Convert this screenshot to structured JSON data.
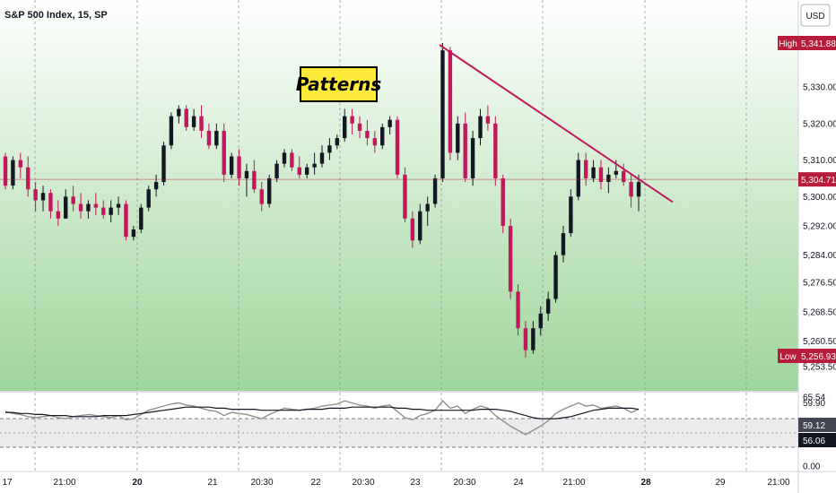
{
  "header": {
    "title": "S&P 500 Index, 15, SP",
    "currency_label": "USD"
  },
  "colors": {
    "up": "#131722",
    "down": "#c2185b",
    "trend": "#c2185b",
    "badge_red": "#b71c3c",
    "badge_dark": "#434651",
    "bg_top": "#ffffff",
    "bg_bottom": "#9ed69a",
    "rsi_line": "#909090",
    "rsi_ma": "#131722",
    "annotation_bg": "#ffeb3b"
  },
  "annotation": {
    "label": "Patterns"
  },
  "chart_data": [
    {
      "type": "candlestick",
      "title": "S&P 500 Index, 15, SP",
      "ylim": [
        5250,
        5345
      ],
      "y_ticks": [
        "5,330.00",
        "5,320.00",
        "5,310.00",
        "5,300.00",
        "5,292.00",
        "5,284.00",
        "5,276.50",
        "5,268.50",
        "5,260.50",
        "5,253.50"
      ],
      "x_tick_labels": [
        "17",
        "21:00",
        "20",
        "21",
        "20:30",
        "22",
        "20:30",
        "23",
        "20:30",
        "24",
        "21:00",
        "28",
        "29",
        "21:00"
      ],
      "high": {
        "label": "High",
        "value": "5,341.88"
      },
      "low": {
        "label": "Low",
        "value": "5,256.93"
      },
      "last_price": "5,304.71",
      "trendline": {
        "from": 5341.5,
        "to": 5298.5
      },
      "ohlc": [
        [
          5311,
          5312,
          5302,
          5303
        ],
        [
          5303,
          5311,
          5302,
          5310
        ],
        [
          5310,
          5312,
          5305,
          5308
        ],
        [
          5308,
          5311,
          5300,
          5302
        ],
        [
          5302,
          5304,
          5296,
          5299
        ],
        [
          5299,
          5303,
          5296,
          5301
        ],
        [
          5301,
          5302,
          5294,
          5296
        ],
        [
          5296,
          5299,
          5292,
          5294
        ],
        [
          5294,
          5302,
          5294,
          5300
        ],
        [
          5300,
          5303,
          5296,
          5298
        ],
        [
          5298,
          5301,
          5294,
          5296
        ],
        [
          5296,
          5299,
          5294,
          5298
        ],
        [
          5298,
          5301,
          5295,
          5297
        ],
        [
          5297,
          5299,
          5294,
          5295
        ],
        [
          5295,
          5299,
          5293,
          5297
        ],
        [
          5297,
          5300,
          5295,
          5298
        ],
        [
          5298,
          5299,
          5288,
          5289
        ],
        [
          5289,
          5292,
          5288,
          5291
        ],
        [
          5291,
          5298,
          5290,
          5297
        ],
        [
          5297,
          5303,
          5296,
          5302
        ],
        [
          5302,
          5306,
          5300,
          5304
        ],
        [
          5304,
          5315,
          5303,
          5314
        ],
        [
          5314,
          5323,
          5313,
          5322
        ],
        [
          5322,
          5325,
          5320,
          5324
        ],
        [
          5324,
          5325,
          5318,
          5319
        ],
        [
          5319,
          5324,
          5318,
          5322
        ],
        [
          5322,
          5325,
          5316,
          5318
        ],
        [
          5318,
          5320,
          5313,
          5314
        ],
        [
          5314,
          5320,
          5313,
          5318
        ],
        [
          5318,
          5320,
          5304,
          5306
        ],
        [
          5306,
          5312,
          5305,
          5311
        ],
        [
          5311,
          5313,
          5303,
          5305
        ],
        [
          5305,
          5309,
          5300,
          5307
        ],
        [
          5307,
          5310,
          5301,
          5302
        ],
        [
          5302,
          5304,
          5296,
          5298
        ],
        [
          5298,
          5306,
          5297,
          5305
        ],
        [
          5305,
          5310,
          5304,
          5309
        ],
        [
          5309,
          5313,
          5308,
          5312
        ],
        [
          5312,
          5313,
          5307,
          5308
        ],
        [
          5308,
          5311,
          5305,
          5306
        ],
        [
          5306,
          5309,
          5305,
          5308
        ],
        [
          5308,
          5312,
          5306,
          5309
        ],
        [
          5309,
          5314,
          5308,
          5312
        ],
        [
          5312,
          5316,
          5310,
          5314
        ],
        [
          5314,
          5317,
          5313,
          5316
        ],
        [
          5316,
          5324,
          5315,
          5322
        ],
        [
          5322,
          5324,
          5317,
          5320
        ],
        [
          5320,
          5322,
          5316,
          5318
        ],
        [
          5318,
          5321,
          5314,
          5316
        ],
        [
          5316,
          5318,
          5312,
          5314
        ],
        [
          5314,
          5320,
          5313,
          5319
        ],
        [
          5319,
          5322,
          5317,
          5321
        ],
        [
          5321,
          5322,
          5305,
          5306
        ],
        [
          5306,
          5308,
          5293,
          5294
        ],
        [
          5294,
          5296,
          5286,
          5288
        ],
        [
          5288,
          5298,
          5287,
          5296
        ],
        [
          5296,
          5300,
          5292,
          5298
        ],
        [
          5298,
          5306,
          5297,
          5305
        ],
        [
          5305,
          5342,
          5304,
          5340
        ],
        [
          5340,
          5341,
          5310,
          5312
        ],
        [
          5312,
          5322,
          5310,
          5320
        ],
        [
          5320,
          5323,
          5304,
          5305
        ],
        [
          5305,
          5318,
          5303,
          5316
        ],
        [
          5316,
          5324,
          5314,
          5322
        ],
        [
          5322,
          5325,
          5318,
          5320
        ],
        [
          5320,
          5322,
          5303,
          5305
        ],
        [
          5305,
          5306,
          5290,
          5292
        ],
        [
          5292,
          5294,
          5272,
          5274
        ],
        [
          5274,
          5276,
          5262,
          5264
        ],
        [
          5264,
          5266,
          5256,
          5258
        ],
        [
          5258,
          5266,
          5257,
          5264
        ],
        [
          5264,
          5270,
          5262,
          5268
        ],
        [
          5268,
          5274,
          5266,
          5272
        ],
        [
          5272,
          5285,
          5271,
          5284
        ],
        [
          5284,
          5292,
          5282,
          5290
        ],
        [
          5290,
          5302,
          5289,
          5300
        ],
        [
          5300,
          5312,
          5299,
          5310
        ],
        [
          5310,
          5312,
          5303,
          5305
        ],
        [
          5305,
          5310,
          5304,
          5308
        ],
        [
          5308,
          5310,
          5302,
          5304
        ],
        [
          5304,
          5308,
          5301,
          5306
        ],
        [
          5306,
          5310,
          5305,
          5307
        ],
        [
          5307,
          5309,
          5303,
          5304
        ],
        [
          5304,
          5306,
          5297,
          5300
        ],
        [
          5300,
          5306,
          5296,
          5304
        ]
      ]
    },
    {
      "type": "line",
      "title": "RSI",
      "ylim": [
        0,
        70
      ],
      "y_ticks": [
        "65.54",
        "59.90",
        "0.00"
      ],
      "rsi_value": "59.12",
      "ma_value": "56.06",
      "rsi": [
        52,
        50,
        49,
        47,
        46,
        47,
        48,
        46,
        45,
        47,
        48,
        49,
        48,
        47,
        46,
        48,
        44,
        45,
        49,
        53,
        55,
        57,
        59,
        60,
        58,
        57,
        55,
        53,
        52,
        48,
        51,
        50,
        49,
        47,
        45,
        49,
        52,
        55,
        54,
        53,
        54,
        55,
        57,
        58,
        59,
        62,
        60,
        58,
        57,
        55,
        57,
        58,
        52,
        46,
        44,
        48,
        50,
        53,
        62,
        55,
        57,
        50,
        54,
        57,
        55,
        48,
        43,
        38,
        34,
        30,
        34,
        38,
        43,
        50,
        54,
        57,
        60,
        57,
        58,
        55,
        56,
        57,
        55,
        51,
        54
      ],
      "ma": [
        51,
        51,
        50,
        50,
        49,
        49,
        48,
        48,
        48,
        47,
        47,
        47,
        47,
        48,
        48,
        48,
        48,
        49,
        50,
        51,
        52,
        53,
        54,
        55,
        56,
        56,
        56,
        56,
        55,
        55,
        54,
        54,
        54,
        54,
        53,
        53,
        53,
        53,
        53,
        53,
        54,
        54,
        54,
        55,
        55,
        55,
        56,
        56,
        56,
        56,
        56,
        56,
        55,
        55,
        54,
        54,
        53,
        53,
        53,
        53,
        53,
        53,
        53,
        54,
        54,
        54,
        53,
        52,
        50,
        48,
        46,
        45,
        45,
        45,
        46,
        47,
        49,
        51,
        53,
        54,
        55,
        55,
        55,
        55,
        54
      ]
    }
  ]
}
